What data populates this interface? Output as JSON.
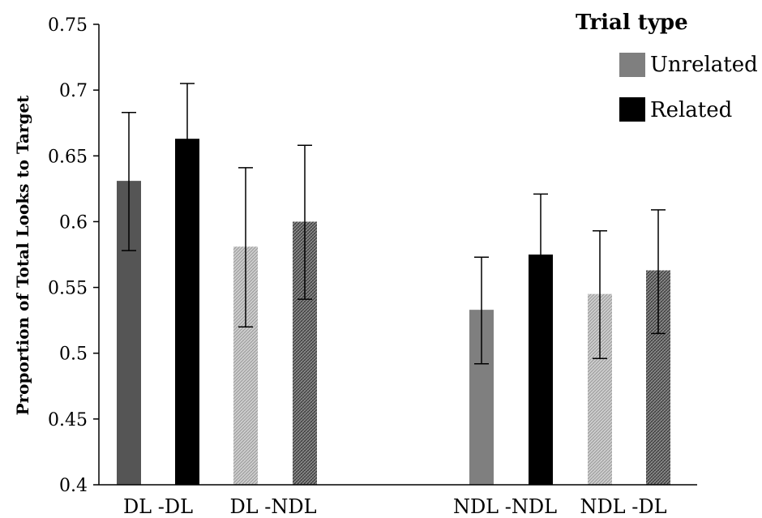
{
  "chart_data": {
    "type": "bar",
    "title": "",
    "xlabel": "",
    "ylabel": "Proportion of Total Looks to Target",
    "ylim": [
      0.4,
      0.75
    ],
    "yticks": [
      "0.4",
      "0.45",
      "0.5",
      "0.55",
      "0.6",
      "0.65",
      "0.7",
      "0.75"
    ],
    "grid": false,
    "legend": {
      "title": "Trial type",
      "position": "top-right",
      "entries": [
        {
          "label": "Unrelated",
          "color": "#7f7f7f"
        },
        {
          "label": "Related",
          "color": "#000000"
        }
      ]
    },
    "categories": [
      "DL -DL",
      "DL -NDL",
      "NDL -NDL",
      "NDL -DL"
    ],
    "bars": [
      {
        "category": "DL -DL",
        "trial_type": "Unrelated",
        "value": 0.631,
        "err_low": 0.578,
        "err_high": 0.683,
        "fill": "solid",
        "color": "#555555"
      },
      {
        "category": "DL -DL",
        "trial_type": "Related",
        "value": 0.663,
        "err_low": 0.622,
        "err_high": 0.705,
        "fill": "solid",
        "color": "#000000"
      },
      {
        "category": "DL -NDL",
        "trial_type": "Unrelated",
        "value": 0.581,
        "err_low": 0.52,
        "err_high": 0.641,
        "fill": "light-pattern",
        "color": "#b5b5b5"
      },
      {
        "category": "DL -NDL",
        "trial_type": "Related",
        "value": 0.6,
        "err_low": 0.541,
        "err_high": 0.658,
        "fill": "dark-pattern",
        "color": "#666666"
      },
      {
        "category": "NDL -NDL",
        "trial_type": "Unrelated",
        "value": 0.533,
        "err_low": 0.492,
        "err_high": 0.573,
        "fill": "solid",
        "color": "#7f7f7f"
      },
      {
        "category": "NDL -NDL",
        "trial_type": "Related",
        "value": 0.575,
        "err_low": 0.53,
        "err_high": 0.621,
        "fill": "solid",
        "color": "#000000"
      },
      {
        "category": "NDL -DL",
        "trial_type": "Unrelated",
        "value": 0.545,
        "err_low": 0.496,
        "err_high": 0.593,
        "fill": "light-pattern",
        "color": "#b5b5b5"
      },
      {
        "category": "NDL -DL",
        "trial_type": "Related",
        "value": 0.563,
        "err_low": 0.515,
        "err_high": 0.609,
        "fill": "dark-pattern",
        "color": "#666666"
      }
    ]
  }
}
